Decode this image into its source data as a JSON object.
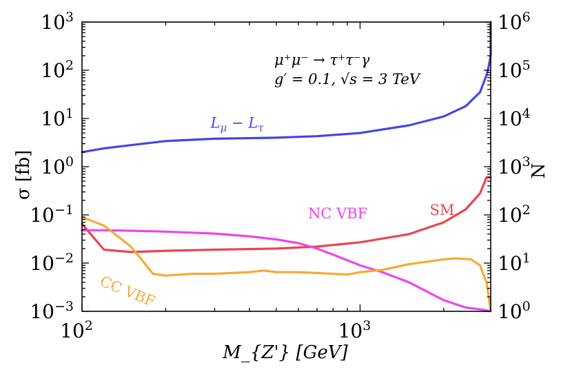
{
  "chart_data": {
    "type": "line",
    "xscale": "log",
    "yscale": "log",
    "xlim": [
      100,
      2950
    ],
    "ylim": [
      0.001,
      1000
    ],
    "xlabel": "M_{Z'} [GeV]",
    "ylabel": "σ [fb]",
    "y2label": "N",
    "y2lim": [
      1,
      1000000
    ],
    "x_ticks": [
      {
        "value": 100,
        "base": "10",
        "exp": "2"
      },
      {
        "value": 1000,
        "base": "10",
        "exp": "3"
      }
    ],
    "y_ticks": [
      {
        "value": 0.001,
        "base": "10",
        "exp": "−3"
      },
      {
        "value": 0.01,
        "base": "10",
        "exp": "−2"
      },
      {
        "value": 0.1,
        "base": "10",
        "exp": "−1"
      },
      {
        "value": 1,
        "base": "10",
        "exp": "0"
      },
      {
        "value": 10,
        "base": "10",
        "exp": "1"
      },
      {
        "value": 100,
        "base": "10",
        "exp": "2"
      },
      {
        "value": 1000,
        "base": "10",
        "exp": "3"
      }
    ],
    "y2_ticks": [
      {
        "value": 1,
        "base": "10",
        "exp": "0"
      },
      {
        "value": 10,
        "base": "10",
        "exp": "1"
      },
      {
        "value": 100,
        "base": "10",
        "exp": "2"
      },
      {
        "value": 1000,
        "base": "10",
        "exp": "3"
      },
      {
        "value": 10000,
        "base": "10",
        "exp": "4"
      },
      {
        "value": 100000,
        "base": "10",
        "exp": "5"
      },
      {
        "value": 1000000,
        "base": "10",
        "exp": "6"
      }
    ],
    "annotations": {
      "process": "μ⁺μ⁻ → τ⁺τ⁻γ",
      "params": "g′ = 0.1, √s = 3 TeV"
    },
    "series": [
      {
        "name": "L_μ − L_τ",
        "label_main": "L",
        "label_sub1": "μ",
        "label_mid": " − L",
        "label_sub2": "τ",
        "color": "#4545e6",
        "x": [
          100,
          120,
          150,
          200,
          300,
          500,
          700,
          1000,
          1500,
          2000,
          2400,
          2700,
          2850,
          2900,
          2950,
          2950
        ],
        "y": [
          2.0,
          2.4,
          2.8,
          3.4,
          3.8,
          4.0,
          4.3,
          5.0,
          7.2,
          11,
          18,
          35,
          80,
          120,
          200,
          1000
        ]
      },
      {
        "name": "SM",
        "color": "#e8454e",
        "x": [
          100,
          120,
          150,
          200,
          300,
          500,
          700,
          1000,
          1500,
          2000,
          2400,
          2700,
          2850,
          2950
        ],
        "y": [
          0.065,
          0.019,
          0.017,
          0.018,
          0.019,
          0.02,
          0.022,
          0.027,
          0.04,
          0.07,
          0.13,
          0.28,
          0.6,
          0.6
        ]
      },
      {
        "name": "NC VBF",
        "color": "#ec45ec",
        "x": [
          100,
          120,
          150,
          200,
          300,
          400,
          500,
          600,
          700,
          800,
          1000,
          1200,
          1500,
          2000,
          2400,
          2700,
          2950
        ],
        "y": [
          0.048,
          0.048,
          0.047,
          0.045,
          0.041,
          0.036,
          0.031,
          0.026,
          0.02,
          0.015,
          0.009,
          0.0065,
          0.004,
          0.0017,
          0.0012,
          0.0011,
          0.001
        ]
      },
      {
        "name": "CC VBF",
        "color": "#f5ab35",
        "x": [
          100,
          120,
          150,
          180,
          200,
          250,
          300,
          400,
          450,
          500,
          600,
          800,
          900,
          1000,
          1200,
          1500,
          2000,
          2200,
          2500,
          2700,
          2850,
          2950
        ],
        "y": [
          0.09,
          0.06,
          0.022,
          0.006,
          0.0055,
          0.006,
          0.006,
          0.0065,
          0.007,
          0.0065,
          0.0065,
          0.006,
          0.0058,
          0.0065,
          0.0072,
          0.0095,
          0.012,
          0.0125,
          0.012,
          0.009,
          0.004,
          0.001
        ]
      }
    ],
    "series_labels": [
      {
        "series": 0,
        "at": [
          290,
          6.4
        ]
      },
      {
        "series": 1,
        "at": [
          1780,
          0.1
        ]
      },
      {
        "series": 2,
        "at": [
          650,
          0.085
        ]
      },
      {
        "series": 3,
        "at": [
          115,
          0.0035
        ]
      }
    ]
  }
}
